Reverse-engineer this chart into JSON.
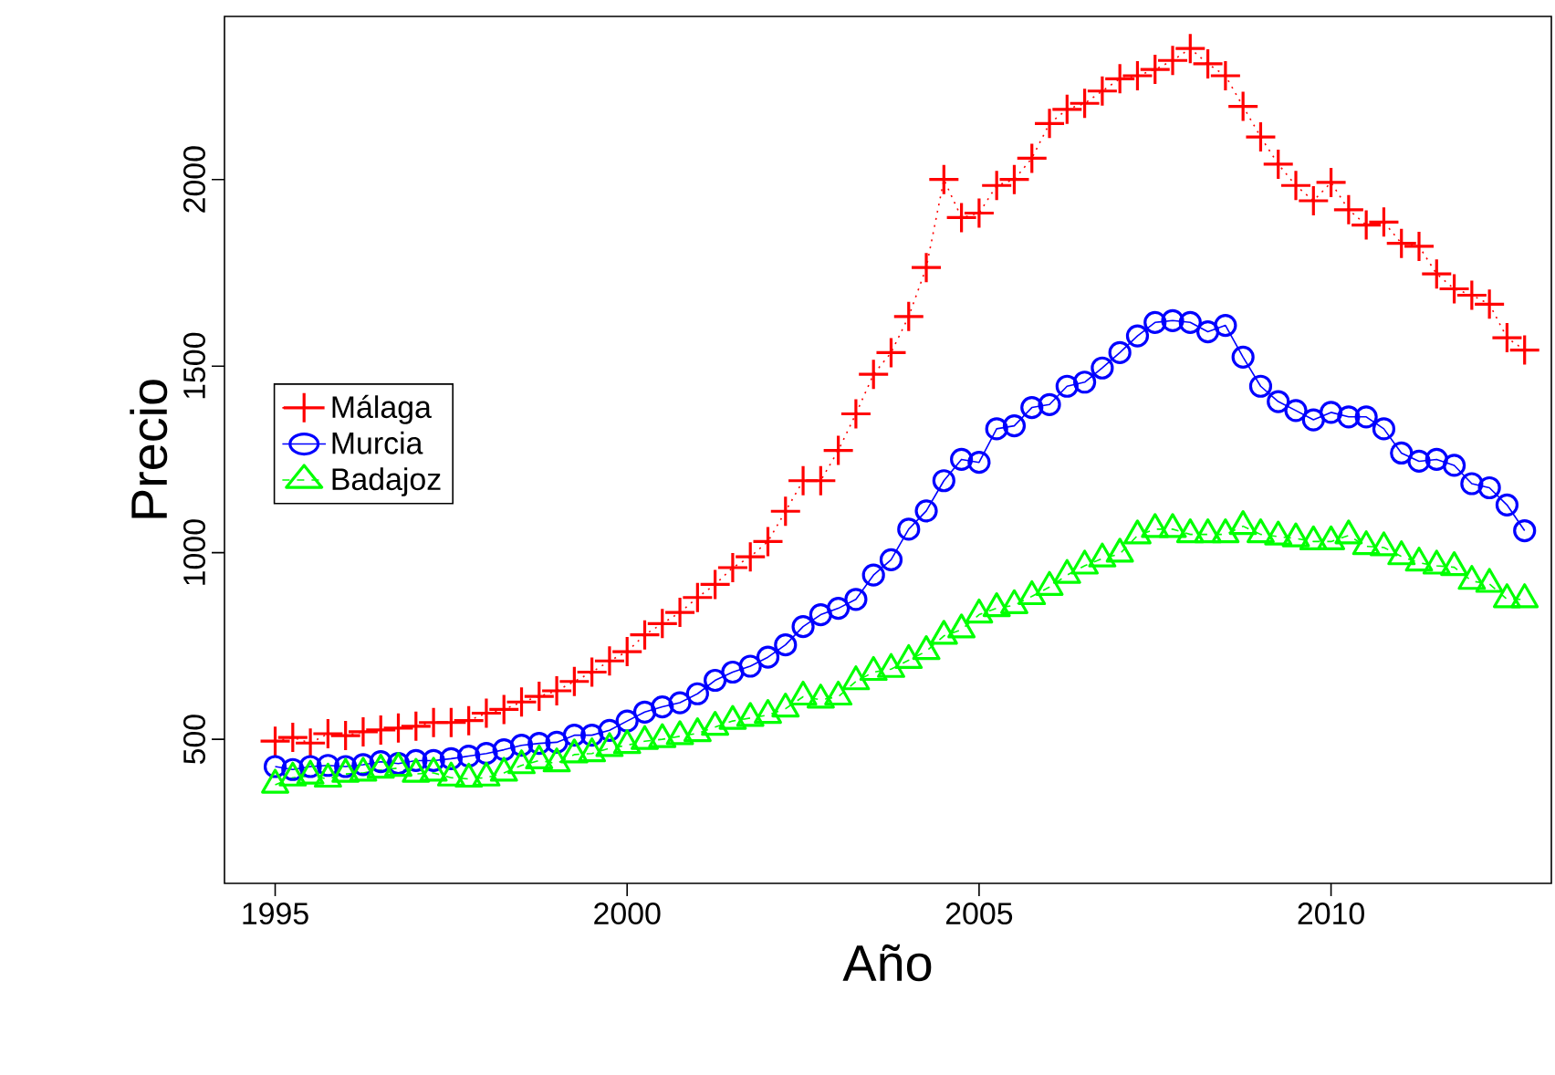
{
  "chart_data": {
    "type": "line",
    "xlabel": "Año",
    "ylabel": "Precio",
    "xlim": [
      1994.28,
      2013.13
    ],
    "ylim": [
      114,
      2437
    ],
    "xticks": [
      1995,
      2000,
      2005,
      2010
    ],
    "yticks": [
      500,
      1000,
      1500,
      2000
    ],
    "legend": "left",
    "x": [
      1995,
      1995.25,
      1995.5,
      1995.75,
      1996,
      1996.25,
      1996.5,
      1996.75,
      1997,
      1997.25,
      1997.5,
      1997.75,
      1998,
      1998.25,
      1998.5,
      1998.75,
      1999,
      1999.25,
      1999.5,
      1999.75,
      2000,
      2000.25,
      2000.5,
      2000.75,
      2001,
      2001.25,
      2001.5,
      2001.75,
      2002,
      2002.25,
      2002.5,
      2002.75,
      2003,
      2003.25,
      2003.5,
      2003.75,
      2004,
      2004.25,
      2004.5,
      2004.75,
      2005,
      2005.25,
      2005.5,
      2005.75,
      2006,
      2006.25,
      2006.5,
      2006.75,
      2007,
      2007.25,
      2007.5,
      2007.75,
      2008,
      2008.25,
      2008.5,
      2008.75,
      2009,
      2009.25,
      2009.5,
      2009.75,
      2010,
      2010.25,
      2010.5,
      2010.75,
      2011,
      2011.25,
      2011.5,
      2011.75,
      2012,
      2012.25,
      2012.5,
      2012.75
    ],
    "series": [
      {
        "name": "Málaga",
        "color": "#ff0000",
        "line_style": "dotted",
        "marker": "cross",
        "values": [
          495,
          505,
          490,
          515,
          510,
          520,
          525,
          530,
          535,
          545,
          545,
          550,
          570,
          580,
          600,
          615,
          630,
          655,
          680,
          710,
          735,
          780,
          810,
          840,
          880,
          915,
          960,
          989,
          1030,
          1111,
          1193,
          1193,
          1274,
          1372,
          1478,
          1536,
          1633,
          1764,
          2000,
          1898,
          1910,
          1984,
          2000,
          2057,
          2150,
          2188,
          2204,
          2237,
          2270,
          2278,
          2295,
          2319,
          2351,
          2310,
          2278,
          2196,
          2114,
          2041,
          1984,
          1943,
          1992,
          1919,
          1878,
          1886,
          1829,
          1821,
          1747,
          1707,
          1690,
          1666,
          1576,
          1543
        ]
      },
      {
        "name": "Murcia",
        "color": "#0000ff",
        "line_style": "solid",
        "marker": "circle",
        "values": [
          427,
          419,
          427,
          430,
          427,
          432,
          440,
          435,
          443,
          443,
          448,
          455,
          462,
          472,
          484,
          489,
          492,
          511,
          511,
          524,
          549,
          573,
          587,
          598,
          622,
          658,
          680,
          696,
          720,
          753,
          802,
          834,
          851,
          875,
          940,
          981,
          1063,
          1112,
          1193,
          1250,
          1242,
          1332,
          1340,
          1389,
          1397,
          1446,
          1457,
          1495,
          1536,
          1581,
          1617,
          1622,
          1617,
          1592,
          1609,
          1524,
          1446,
          1405,
          1381,
          1356,
          1376,
          1364,
          1364,
          1332,
          1267,
          1245,
          1250,
          1234,
          1185,
          1174,
          1128,
          1059
        ]
      },
      {
        "name": "Badajoz",
        "color": "#00ff00",
        "line_style": "dashed",
        "marker": "triangle",
        "values": [
          378,
          397,
          402,
          394,
          407,
          410,
          418,
          423,
          407,
          410,
          397,
          394,
          397,
          410,
          430,
          443,
          435,
          459,
          462,
          476,
          484,
          495,
          500,
          508,
          516,
          533,
          549,
          557,
          565,
          582,
          614,
          606,
          614,
          655,
          680,
          688,
          712,
          736,
          777,
          794,
          834,
          851,
          859,
          883,
          908,
          940,
          965,
          984,
          997,
          1046,
          1063,
          1063,
          1049,
          1049,
          1049,
          1071,
          1049,
          1043,
          1038,
          1030,
          1030,
          1046,
          1017,
          1014,
          990,
          973,
          965,
          961,
          924,
          916,
          875,
          875
        ]
      }
    ]
  }
}
